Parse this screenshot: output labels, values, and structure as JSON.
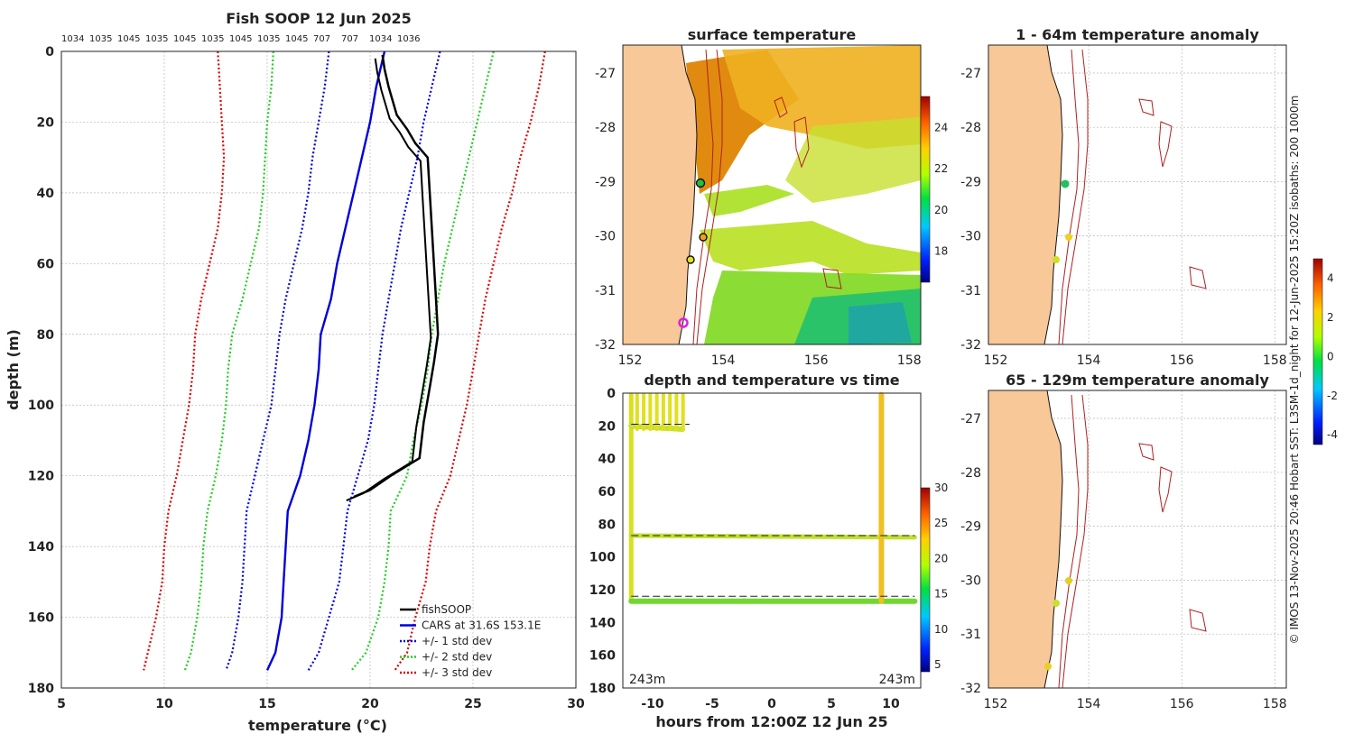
{
  "chart_data": [
    {
      "type": "line",
      "title": "Fish SOOP 12 Jun 2025",
      "top_axis_labels": [
        "1034",
        "1035",
        "1045",
        "1035",
        "1045",
        "1035",
        "1045",
        "1035",
        "1045",
        "707",
        "707",
        "1034",
        "1036"
      ],
      "xlabel": "temperature (°C)",
      "ylabel": "depth (m)",
      "xlim": [
        5,
        30
      ],
      "ylim": [
        180,
        0
      ],
      "xticks": [
        "5",
        "10",
        "15",
        "20",
        "25",
        "30"
      ],
      "yticks": [
        "0",
        "20",
        "40",
        "60",
        "80",
        "100",
        "120",
        "140",
        "160",
        "180"
      ],
      "depth": [
        0,
        10,
        20,
        30,
        40,
        50,
        60,
        70,
        80,
        90,
        100,
        110,
        120,
        130,
        140,
        150,
        160,
        170,
        175
      ],
      "series": [
        {
          "name": "-3 std dev",
          "color": "#dd0000",
          "values": [
            12.6,
            12.7,
            12.8,
            12.9,
            12.8,
            12.6,
            12.2,
            11.8,
            11.5,
            11.4,
            11.2,
            10.9,
            10.6,
            10.2,
            10.0,
            9.9,
            9.6,
            9.2,
            9.0
          ]
        },
        {
          "name": "-2 std dev",
          "color": "#22cc22",
          "values": [
            15.3,
            15.2,
            15.0,
            14.9,
            14.8,
            14.6,
            14.2,
            13.8,
            13.3,
            13.1,
            13.0,
            12.8,
            12.5,
            12.1,
            11.9,
            11.8,
            11.6,
            11.3,
            11.0
          ]
        },
        {
          "name": "-1 std dev",
          "color": "#0000dd",
          "values": [
            18.0,
            17.8,
            17.5,
            17.2,
            17.0,
            16.7,
            16.3,
            15.9,
            15.6,
            15.4,
            15.2,
            14.8,
            14.4,
            14.0,
            13.9,
            13.8,
            13.6,
            13.3,
            13.0
          ]
        },
        {
          "name": "CARS at 31.6S 153.1E",
          "color": "#0000dd",
          "values": [
            20.7,
            20.3,
            20.0,
            19.6,
            19.2,
            18.8,
            18.4,
            18.1,
            17.6,
            17.5,
            17.3,
            17.0,
            16.6,
            16.0,
            15.9,
            15.8,
            15.7,
            15.4,
            15.0
          ]
        },
        {
          "name": "+1 std dev",
          "color": "#0000dd",
          "values": [
            23.4,
            23.0,
            22.6,
            22.3,
            21.9,
            21.5,
            21.2,
            20.9,
            20.6,
            20.4,
            20.2,
            19.9,
            19.4,
            18.9,
            18.7,
            18.5,
            18.0,
            17.5,
            17.0
          ]
        },
        {
          "name": "+2 std dev",
          "color": "#22cc22",
          "values": [
            26.0,
            25.6,
            25.2,
            24.8,
            24.4,
            24.0,
            23.6,
            23.3,
            23.0,
            22.8,
            22.5,
            22.1,
            21.8,
            21.0,
            20.9,
            20.7,
            20.4,
            19.8,
            19.1
          ]
        },
        {
          "name": "+3 std dev",
          "color": "#dd0000",
          "values": [
            28.5,
            28.2,
            27.8,
            27.3,
            26.9,
            26.4,
            26.0,
            25.6,
            25.3,
            25.0,
            24.7,
            24.3,
            23.9,
            23.2,
            22.9,
            22.7,
            22.2,
            21.8,
            21.2
          ]
        },
        {
          "name": "fishSOOP",
          "color": "#000000",
          "depth": [
            1,
            5,
            10,
            18,
            22,
            26,
            30,
            40,
            50,
            60,
            70,
            80,
            88,
            95,
            105,
            115,
            120,
            124,
            126
          ],
          "values": [
            20.6,
            20.7,
            20.9,
            21.3,
            21.8,
            22.2,
            22.8,
            22.9,
            23.0,
            23.1,
            23.2,
            23.3,
            23.1,
            22.9,
            22.6,
            22.4,
            21.0,
            20.0,
            19.2
          ]
        }
      ],
      "legend": [
        "fishSOOP",
        "CARS at 31.6S 153.1E",
        "+/- 1 std dev",
        "+/- 2 std dev",
        "+/- 3 std dev"
      ],
      "legend_position": "bottom-right"
    },
    {
      "type": "heatmap",
      "title": "surface temperature",
      "xticks": [
        "152",
        "154",
        "156",
        "158"
      ],
      "yticks": [
        "-27",
        "-28",
        "-29",
        "-30",
        "-31",
        "-32"
      ],
      "colorbar_ticks": [
        "18",
        "20",
        "22",
        "24"
      ],
      "colorbar_range": [
        16.5,
        25.5
      ]
    },
    {
      "type": "scatter",
      "title": "depth and temperature vs time",
      "xlabel": "hours from 12:00Z 12 Jun 25",
      "xticks": [
        "-10",
        "-5",
        "0",
        "5",
        "10"
      ],
      "yticks": [
        "0",
        "20",
        "40",
        "60",
        "80",
        "100",
        "120",
        "140",
        "160",
        "180"
      ],
      "xlim": [
        -12.5,
        12.5
      ],
      "ylim": [
        180,
        0
      ],
      "corner_labels": [
        "243m",
        "243m"
      ],
      "colorbar_ticks": [
        "5",
        "10",
        "15",
        "20",
        "25",
        "30"
      ],
      "colorbar_range": [
        4,
        30
      ]
    },
    {
      "type": "heatmap",
      "title": "1 - 64m temperature anomaly",
      "xticks": [
        "152",
        "154",
        "156",
        "158"
      ],
      "yticks": [
        "-27",
        "-28",
        "-29",
        "-30",
        "-31",
        "-32"
      ]
    },
    {
      "type": "heatmap",
      "title": "65 - 129m temperature anomaly",
      "xticks": [
        "152",
        "154",
        "156",
        "158"
      ],
      "yticks": [
        "-27",
        "-28",
        "-29",
        "-30",
        "-31",
        "-32"
      ],
      "colorbar_ticks": [
        "4",
        "2",
        "0",
        "-2",
        "-4"
      ],
      "colorbar_range": [
        -4.5,
        5
      ]
    }
  ],
  "side_text": "© IMOS 13-Nov-2025 20:46 Hobart SST: L3SM-1d_night for 12-Jun-2025 15:20Z isobaths: 200  1000m"
}
